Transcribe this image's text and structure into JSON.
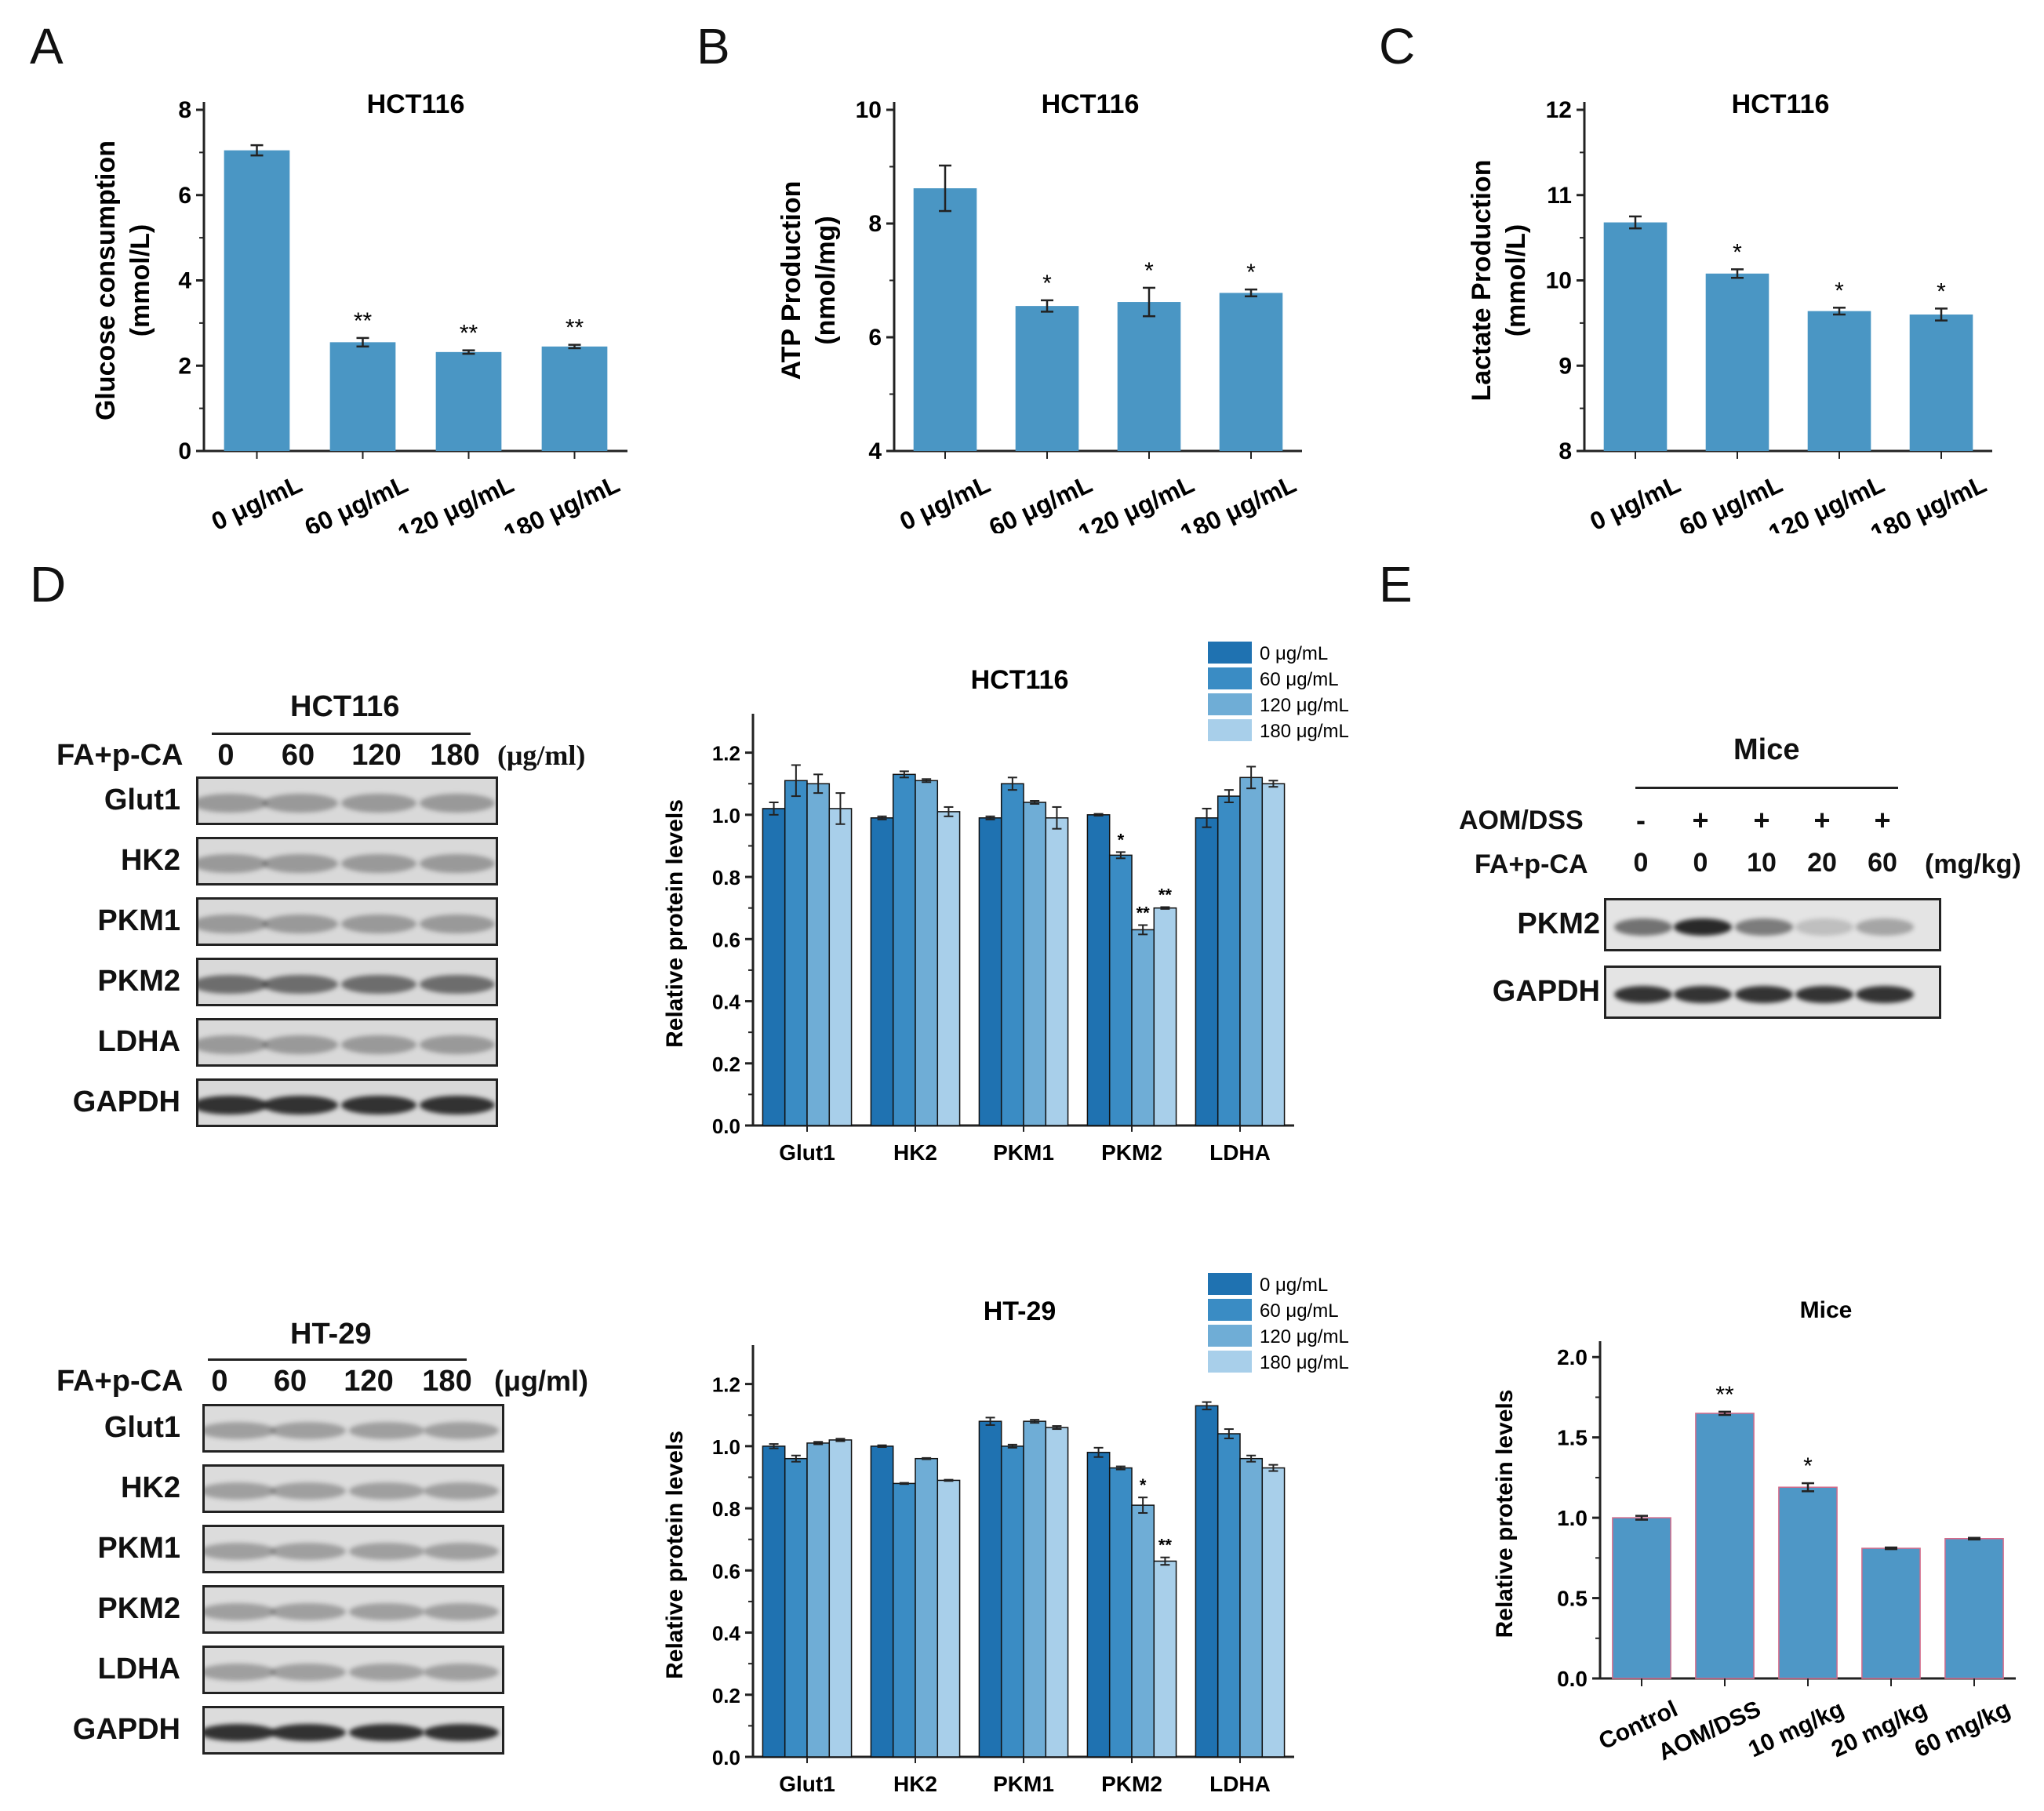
{
  "panel_letters": [
    "A",
    "B",
    "C",
    "D",
    "E"
  ],
  "colors": {
    "bar": "#4a96c4",
    "d0": "#1f72b1",
    "d60": "#3a8cc4",
    "d120": "#6fadd6",
    "d180": "#a8cfea",
    "e_bar": "#4e97c6"
  },
  "chart_data": [
    {
      "id": "A",
      "type": "bar",
      "title": "HCT116",
      "ylabel": "Glucose consumption",
      "ylabel2": "(mmol/L)",
      "categories": [
        "0 μg/mL",
        "60 μg/mL",
        "120 μg/mL",
        "180 μg/mL"
      ],
      "values": [
        7.05,
        2.55,
        2.32,
        2.45
      ],
      "errors": [
        0.12,
        0.1,
        0.04,
        0.04
      ],
      "sig": [
        "",
        "**",
        "**",
        "**"
      ],
      "ylim": [
        0,
        8
      ],
      "yticks": [
        "0",
        "2",
        "4",
        "6",
        "8"
      ]
    },
    {
      "id": "B",
      "type": "bar",
      "title": "HCT116",
      "ylabel": "ATP Production",
      "ylabel2": "(nmol/mg)",
      "categories": [
        "0 μg/mL",
        "60 μg/mL",
        "120 μg/mL",
        "180 μg/mL"
      ],
      "values": [
        8.62,
        6.55,
        6.62,
        6.78
      ],
      "errors": [
        0.4,
        0.1,
        0.25,
        0.06
      ],
      "sig": [
        "",
        "*",
        "*",
        "*"
      ],
      "ylim": [
        4,
        10
      ],
      "yticks": [
        "4",
        "6",
        "8",
        "10"
      ]
    },
    {
      "id": "C",
      "type": "bar",
      "title": "HCT116",
      "ylabel": "Lactate Production",
      "ylabel2": "(mmol/L)",
      "categories": [
        "0 μg/mL",
        "60 μg/mL",
        "120 μg/mL",
        "180 μg/mL"
      ],
      "values": [
        10.68,
        10.08,
        9.64,
        9.6
      ],
      "errors": [
        0.07,
        0.05,
        0.04,
        0.07
      ],
      "sig": [
        "",
        "*",
        "*",
        "*"
      ],
      "ylim": [
        8,
        12
      ],
      "yticks": [
        "8",
        "9",
        "10",
        "11",
        "12"
      ]
    },
    {
      "id": "D1",
      "type": "bar",
      "title": "HCT116",
      "ylabel": "Relative protein levels",
      "categories": [
        "Glut1",
        "HK2",
        "PKM1",
        "PKM2",
        "LDHA"
      ],
      "series": [
        {
          "name": "0 μg/mL",
          "values": [
            1.02,
            0.99,
            0.99,
            1.0,
            0.99
          ],
          "errors": [
            0.02,
            0.005,
            0.005,
            0.003,
            0.03
          ],
          "sig": [
            "",
            "",
            "",
            "",
            ""
          ]
        },
        {
          "name": "60 μg/mL",
          "values": [
            1.11,
            1.13,
            1.1,
            0.87,
            1.06
          ],
          "errors": [
            0.05,
            0.01,
            0.02,
            0.01,
            0.02
          ],
          "sig": [
            "",
            "",
            "",
            "*",
            ""
          ]
        },
        {
          "name": "120 μg/mL",
          "values": [
            1.1,
            1.11,
            1.04,
            0.63,
            1.12
          ],
          "errors": [
            0.03,
            0.005,
            0.005,
            0.015,
            0.035
          ],
          "sig": [
            "",
            "",
            "",
            "**",
            ""
          ]
        },
        {
          "name": "180 μg/mL",
          "values": [
            1.02,
            1.01,
            0.99,
            0.7,
            1.1
          ],
          "errors": [
            0.05,
            0.015,
            0.035,
            0.003,
            0.01
          ],
          "sig": [
            "",
            "",
            "",
            "**",
            ""
          ]
        }
      ],
      "ylim": [
        0,
        1.3
      ],
      "yticks": [
        "0.0",
        "0.2",
        "0.4",
        "0.6",
        "0.8",
        "1.0",
        "1.2"
      ]
    },
    {
      "id": "D2",
      "type": "bar",
      "title": "HT-29",
      "ylabel": "Relative protein levels",
      "categories": [
        "Glut1",
        "HK2",
        "PKM1",
        "PKM2",
        "LDHA"
      ],
      "series": [
        {
          "name": "0 μg/mL",
          "values": [
            1.0,
            1.0,
            1.08,
            0.98,
            1.13
          ],
          "errors": [
            0.007,
            0.003,
            0.012,
            0.015,
            0.012
          ],
          "sig": [
            "",
            "",
            "",
            "",
            ""
          ]
        },
        {
          "name": "60 μg/mL",
          "values": [
            0.96,
            0.88,
            1.0,
            0.93,
            1.04
          ],
          "errors": [
            0.01,
            0.002,
            0.005,
            0.005,
            0.015
          ],
          "sig": [
            "",
            "",
            "",
            "",
            ""
          ]
        },
        {
          "name": "120 μg/mL",
          "values": [
            1.01,
            0.96,
            1.08,
            0.81,
            0.96
          ],
          "errors": [
            0.004,
            0.002,
            0.005,
            0.025,
            0.01
          ],
          "sig": [
            "",
            "",
            "",
            "*",
            ""
          ]
        },
        {
          "name": "180 μg/mL",
          "values": [
            1.02,
            0.89,
            1.06,
            0.63,
            0.93
          ],
          "errors": [
            0.004,
            0.002,
            0.005,
            0.012,
            0.01
          ],
          "sig": [
            "",
            "",
            "",
            "**",
            ""
          ]
        }
      ],
      "ylim": [
        0,
        1.3
      ],
      "yticks": [
        "0.0",
        "0.2",
        "0.4",
        "0.6",
        "0.8",
        "1.0",
        "1.2"
      ]
    },
    {
      "id": "E",
      "type": "bar",
      "title": "Mice",
      "ylabel": "Relative protein levels",
      "categories": [
        "Control",
        "AOM/DSS",
        "10 mg/kg",
        "20 mg/kg",
        "60 mg/kg"
      ],
      "values": [
        1.0,
        1.65,
        1.19,
        0.81,
        0.87
      ],
      "errors": [
        0.012,
        0.01,
        0.025,
        0.005,
        0.005
      ],
      "sig": [
        "",
        "**",
        "*",
        "",
        ""
      ],
      "ylim": [
        0,
        2.05
      ],
      "yticks": [
        "0.0",
        "0.5",
        "1.0",
        "1.5",
        "2.0"
      ]
    }
  ],
  "blots": {
    "hct116": {
      "title": "HCT116",
      "treatment": "FA+p-CA",
      "lanes": [
        "0",
        "60",
        "120",
        "180"
      ],
      "unit": "(μg/ml)",
      "rows": [
        "Glut1",
        "HK2",
        "PKM1",
        "PKM2",
        "LDHA",
        "GAPDH"
      ]
    },
    "ht29": {
      "title": "HT-29",
      "treatment": "FA+p-CA",
      "lanes": [
        "0",
        "60",
        "120",
        "180"
      ],
      "unit": "(μg/ml)",
      "rows": [
        "Glut1",
        "HK2",
        "PKM1",
        "PKM2",
        "LDHA",
        "GAPDH"
      ]
    },
    "mice": {
      "title": "Mice",
      "row1_label": "AOM/DSS",
      "row1": [
        "-",
        "+",
        "+",
        "+",
        "+"
      ],
      "row2_label": "FA+p-CA",
      "row2": [
        "0",
        "0",
        "10",
        "20",
        "60"
      ],
      "unit": "(mg/kg)",
      "rows": [
        "PKM2",
        "GAPDH"
      ]
    }
  }
}
